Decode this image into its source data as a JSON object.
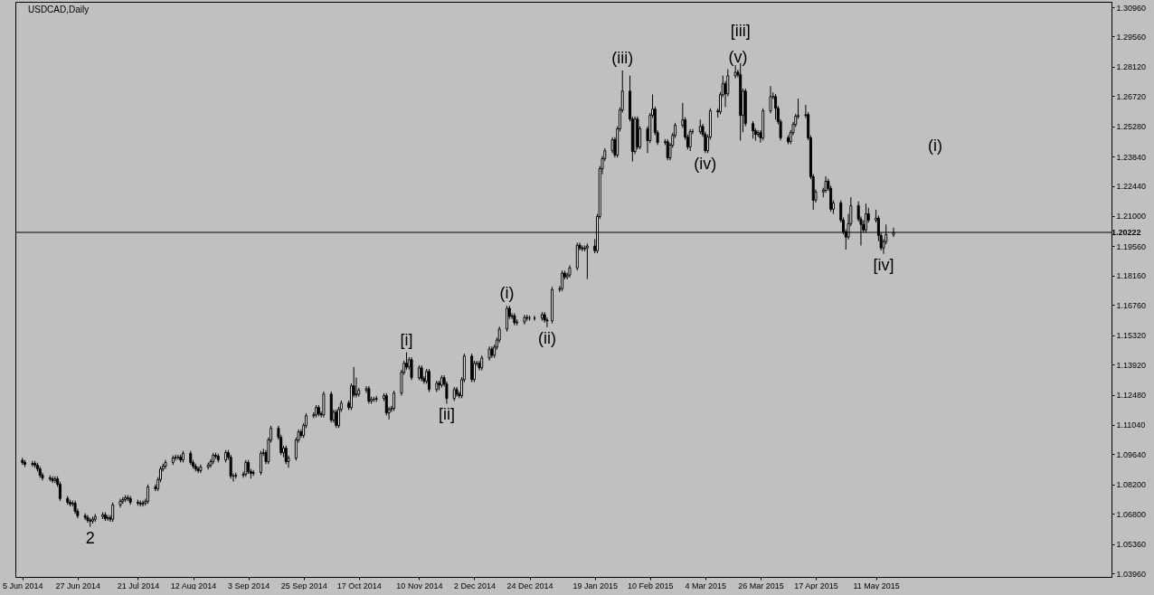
{
  "chart_data": {
    "type": "candlestick",
    "title": "USDCAD,Daily",
    "color": "#000000",
    "xlim": [
      "2014-06-04",
      "2015-08-11"
    ],
    "xticks": [
      {
        "value": "2014-06-05",
        "label": "5 Jun 2014"
      },
      {
        "value": "2014-06-27",
        "label": "27 Jun 2014"
      },
      {
        "value": "2014-07-21",
        "label": "21 Jul 2014"
      },
      {
        "value": "2014-08-12",
        "label": "12 Aug 2014"
      },
      {
        "value": "2014-09-03",
        "label": "3 Sep 2014"
      },
      {
        "value": "2014-09-25",
        "label": "25 Sep 2014"
      },
      {
        "value": "2014-10-17",
        "label": "17 Oct 2014"
      },
      {
        "value": "2014-11-10",
        "label": "10 Nov 2014"
      },
      {
        "value": "2014-12-02",
        "label": "2 Dec 2014"
      },
      {
        "value": "2014-12-24",
        "label": "24 Dec 2014"
      },
      {
        "value": "2015-01-19",
        "label": "19 Jan 2015"
      },
      {
        "value": "2015-02-10",
        "label": "10 Feb 2015"
      },
      {
        "value": "2015-03-04",
        "label": "4 Mar 2015"
      },
      {
        "value": "2015-03-26",
        "label": "26 Mar 2015"
      },
      {
        "value": "2015-04-17",
        "label": "17 Apr 2015"
      },
      {
        "value": "2015-05-11",
        "label": "11 May 2015"
      }
    ],
    "ylim": [
      1.0379,
      1.3122
    ],
    "yticks": [
      {
        "value": 1.3096,
        "label": "1.30960"
      },
      {
        "value": 1.2956,
        "label": "1.29560"
      },
      {
        "value": 1.2812,
        "label": "1.28120"
      },
      {
        "value": 1.2672,
        "label": "1.26720"
      },
      {
        "value": 1.2528,
        "label": "1.25280"
      },
      {
        "value": 1.2384,
        "label": "1.23840"
      },
      {
        "value": 1.2244,
        "label": "1.22440"
      },
      {
        "value": 1.21,
        "label": "1.21000"
      },
      {
        "value": 1.1956,
        "label": "1.19560"
      },
      {
        "value": 1.1816,
        "label": "1.18160"
      },
      {
        "value": 1.1676,
        "label": "1.16760"
      },
      {
        "value": 1.1532,
        "label": "1.15320"
      },
      {
        "value": 1.1392,
        "label": "1.13920"
      },
      {
        "value": 1.1248,
        "label": "1.12480"
      },
      {
        "value": 1.1104,
        "label": "1.11040"
      },
      {
        "value": 1.0964,
        "label": "1.09640"
      },
      {
        "value": 1.082,
        "label": "1.08200"
      },
      {
        "value": 1.068,
        "label": "1.06800"
      },
      {
        "value": 1.0536,
        "label": "1.05360"
      },
      {
        "value": 1.0396,
        "label": "1.03960"
      }
    ],
    "ref_lines": [
      {
        "axis": "y",
        "value": 1.20222,
        "label": "1.20222",
        "color": "#000000"
      }
    ],
    "annotations": [
      {
        "text": "2",
        "x": "2014-07-02",
        "y": 1.0618
      },
      {
        "text": "[i]",
        "x": "2014-11-05",
        "y": 1.145
      },
      {
        "text": "[ii]",
        "x": "2014-11-21",
        "y": 1.1205
      },
      {
        "text": "(i)",
        "x": "2014-12-15",
        "y": 1.1672
      },
      {
        "text": "(ii)",
        "x": "2014-12-31",
        "y": 1.157
      },
      {
        "text": "(iii)",
        "x": "2015-01-30",
        "y": 1.2795
      },
      {
        "text": "(iv)",
        "x": "2015-03-04",
        "y": 1.24
      },
      {
        "text": "(v)",
        "x": "2015-03-17",
        "y": 1.2798
      },
      {
        "text": "[iii]",
        "x": "2015-03-18",
        "y": 1.283
      },
      {
        "text": "[iv]",
        "x": "2015-05-14",
        "y": 1.192
      },
      "(i)"
    ],
    "x": [
      "2014-06-05",
      "2014-06-06",
      "2014-06-09",
      "2014-06-10",
      "2014-06-11",
      "2014-06-12",
      "2014-06-13",
      "2014-06-16",
      "2014-06-17",
      "2014-06-18",
      "2014-06-19",
      "2014-06-20",
      "2014-06-23",
      "2014-06-24",
      "2014-06-25",
      "2014-06-26",
      "2014-06-27",
      "2014-06-30",
      "2014-07-01",
      "2014-07-02",
      "2014-07-03",
      "2014-07-04",
      "2014-07-07",
      "2014-07-08",
      "2014-07-09",
      "2014-07-10",
      "2014-07-11",
      "2014-07-14",
      "2014-07-15",
      "2014-07-16",
      "2014-07-17",
      "2014-07-18",
      "2014-07-21",
      "2014-07-22",
      "2014-07-23",
      "2014-07-24",
      "2014-07-25",
      "2014-07-28",
      "2014-07-29",
      "2014-07-30",
      "2014-07-31",
      "2014-08-01",
      "2014-08-04",
      "2014-08-05",
      "2014-08-06",
      "2014-08-07",
      "2014-08-08",
      "2014-08-11",
      "2014-08-12",
      "2014-08-13",
      "2014-08-14",
      "2014-08-15",
      "2014-08-18",
      "2014-08-19",
      "2014-08-20",
      "2014-08-21",
      "2014-08-22",
      "2014-08-25",
      "2014-08-26",
      "2014-08-27",
      "2014-08-28",
      "2014-08-29",
      "2014-09-01",
      "2014-09-02",
      "2014-09-03",
      "2014-09-04",
      "2014-09-05",
      "2014-09-08",
      "2014-09-09",
      "2014-09-10",
      "2014-09-11",
      "2014-09-12",
      "2014-09-15",
      "2014-09-16",
      "2014-09-17",
      "2014-09-18",
      "2014-09-19",
      "2014-09-22",
      "2014-09-23",
      "2014-09-24",
      "2014-09-25",
      "2014-09-26",
      "2014-09-29",
      "2014-09-30",
      "2014-10-01",
      "2014-10-02",
      "2014-10-03",
      "2014-10-06",
      "2014-10-07",
      "2014-10-08",
      "2014-10-09",
      "2014-10-10",
      "2014-10-13",
      "2014-10-14",
      "2014-10-15",
      "2014-10-16",
      "2014-10-17",
      "2014-10-20",
      "2014-10-21",
      "2014-10-22",
      "2014-10-23",
      "2014-10-24",
      "2014-10-27",
      "2014-10-28",
      "2014-10-29",
      "2014-10-30",
      "2014-10-31",
      "2014-11-03",
      "2014-11-04",
      "2014-11-05",
      "2014-11-06",
      "2014-11-07",
      "2014-11-10",
      "2014-11-11",
      "2014-11-12",
      "2014-11-13",
      "2014-11-14",
      "2014-11-17",
      "2014-11-18",
      "2014-11-19",
      "2014-11-20",
      "2014-11-21",
      "2014-11-24",
      "2014-11-25",
      "2014-11-26",
      "2014-11-27",
      "2014-11-28",
      "2014-12-01",
      "2014-12-02",
      "2014-12-03",
      "2014-12-04",
      "2014-12-05",
      "2014-12-08",
      "2014-12-09",
      "2014-12-10",
      "2014-12-11",
      "2014-12-12",
      "2014-12-15",
      "2014-12-16",
      "2014-12-17",
      "2014-12-18",
      "2014-12-19",
      "2014-12-22",
      "2014-12-23",
      "2014-12-24",
      "2014-12-26",
      "2014-12-29",
      "2014-12-30",
      "2014-12-31",
      "2015-01-02",
      "2015-01-05",
      "2015-01-06",
      "2015-01-07",
      "2015-01-08",
      "2015-01-09",
      "2015-01-12",
      "2015-01-13",
      "2015-01-14",
      "2015-01-15",
      "2015-01-16",
      "2015-01-19",
      "2015-01-20",
      "2015-01-21",
      "2015-01-22",
      "2015-01-23",
      "2015-01-26",
      "2015-01-27",
      "2015-01-28",
      "2015-01-29",
      "2015-01-30",
      "2015-02-02",
      "2015-02-03",
      "2015-02-04",
      "2015-02-05",
      "2015-02-06",
      "2015-02-09",
      "2015-02-10",
      "2015-02-11",
      "2015-02-12",
      "2015-02-13",
      "2015-02-16",
      "2015-02-17",
      "2015-02-18",
      "2015-02-19",
      "2015-02-20",
      "2015-02-23",
      "2015-02-24",
      "2015-02-25",
      "2015-02-26",
      "2015-02-27",
      "2015-03-02",
      "2015-03-03",
      "2015-03-04",
      "2015-03-05",
      "2015-03-06",
      "2015-03-09",
      "2015-03-10",
      "2015-03-11",
      "2015-03-12",
      "2015-03-13",
      "2015-03-16",
      "2015-03-17",
      "2015-03-18",
      "2015-03-19",
      "2015-03-20",
      "2015-03-23",
      "2015-03-24",
      "2015-03-25",
      "2015-03-26",
      "2015-03-27",
      "2015-03-30",
      "2015-03-31",
      "2015-04-01",
      "2015-04-02",
      "2015-04-03",
      "2015-04-06",
      "2015-04-07",
      "2015-04-08",
      "2015-04-09",
      "2015-04-10",
      "2015-04-13",
      "2015-04-14",
      "2015-04-15",
      "2015-04-16",
      "2015-04-17",
      "2015-04-20",
      "2015-04-21",
      "2015-04-22",
      "2015-04-23",
      "2015-04-24",
      "2015-04-27",
      "2015-04-28",
      "2015-04-29",
      "2015-04-30",
      "2015-05-01",
      "2015-05-04",
      "2015-05-05",
      "2015-05-06",
      "2015-05-07",
      "2015-05-08",
      "2015-05-11",
      "2015-05-12",
      "2015-05-13",
      "2015-05-14",
      "2015-05-15",
      "2015-05-18"
    ],
    "ohlc": [
      [
        1.0935,
        1.0947,
        1.0913,
        1.0925
      ],
      [
        1.0925,
        1.0937,
        1.0904,
        1.0916
      ],
      [
        1.0916,
        1.0932,
        1.0904,
        1.092
      ],
      [
        1.092,
        1.0932,
        1.09,
        1.0912
      ],
      [
        1.0912,
        1.0924,
        1.0882,
        1.0894
      ],
      [
        1.0894,
        1.0906,
        1.0852,
        1.0864
      ],
      [
        1.0864,
        1.0876,
        1.0839,
        1.0851
      ],
      [
        1.0851,
        1.0863,
        1.0835,
        1.0847
      ],
      [
        1.0847,
        1.0859,
        1.0827,
        1.0839
      ],
      [
        1.0839,
        1.0859,
        1.0827,
        1.0847
      ],
      [
        1.0847,
        1.0859,
        1.0809,
        1.0821
      ],
      [
        1.0821,
        1.0833,
        1.0741,
        1.0753
      ],
      [
        1.0753,
        1.0765,
        1.0723,
        1.0735
      ],
      [
        1.0735,
        1.0747,
        1.0715,
        1.0727
      ],
      [
        1.0727,
        1.0743,
        1.0715,
        1.0731
      ],
      [
        1.0731,
        1.0743,
        1.068,
        1.0692
      ],
      [
        1.0692,
        1.0704,
        1.0659,
        1.0671
      ],
      [
        1.0671,
        1.0683,
        1.065,
        1.0662
      ],
      [
        1.0662,
        1.0674,
        1.0637,
        1.0649
      ],
      [
        1.0649,
        1.0661,
        1.0618,
        1.0645
      ],
      [
        1.0645,
        1.0666,
        1.0633,
        1.0654
      ],
      [
        1.0654,
        1.0679,
        1.0642,
        1.0667
      ],
      [
        1.0667,
        1.0687,
        1.0655,
        1.0675
      ],
      [
        1.0675,
        1.0687,
        1.0646,
        1.0658
      ],
      [
        1.0658,
        1.0674,
        1.0646,
        1.0662
      ],
      [
        1.0662,
        1.0674,
        1.0642,
        1.0654
      ],
      [
        1.0654,
        1.0734,
        1.0642,
        1.0722
      ],
      [
        1.0722,
        1.0752,
        1.071,
        1.074
      ],
      [
        1.074,
        1.076,
        1.0728,
        1.0748
      ],
      [
        1.0748,
        1.0769,
        1.0736,
        1.0757
      ],
      [
        1.0757,
        1.0769,
        1.0741,
        1.0753
      ],
      [
        1.0753,
        1.0765,
        1.0723,
        1.0735
      ],
      [
        1.0735,
        1.0747,
        1.0719,
        1.0731
      ],
      [
        1.0731,
        1.0743,
        1.0715,
        1.0727
      ],
      [
        1.0727,
        1.0743,
        1.0715,
        1.0731
      ],
      [
        1.0731,
        1.0752,
        1.0719,
        1.074
      ],
      [
        1.074,
        1.082,
        1.0728,
        1.0808
      ],
      [
        1.0808,
        1.082,
        1.0788,
        1.08
      ],
      [
        1.08,
        1.0855,
        1.0788,
        1.0843
      ],
      [
        1.0843,
        1.0906,
        1.0831,
        1.0894
      ],
      [
        1.0894,
        1.0919,
        1.0882,
        1.0907
      ],
      [
        1.0907,
        1.0937,
        1.0895,
        1.0925
      ],
      [
        1.0925,
        1.0958,
        1.0913,
        1.0946
      ],
      [
        1.0946,
        1.0962,
        1.0934,
        1.095
      ],
      [
        1.095,
        1.0962,
        1.0938,
        1.095
      ],
      [
        1.095,
        1.0962,
        1.0925,
        1.0937
      ],
      [
        1.0937,
        1.098,
        1.0925,
        1.0968
      ],
      [
        1.0968,
        1.098,
        1.0913,
        1.0925
      ],
      [
        1.0925,
        1.0937,
        1.0895,
        1.0907
      ],
      [
        1.0907,
        1.0919,
        1.0882,
        1.0894
      ],
      [
        1.0894,
        1.0906,
        1.0874,
        1.0886
      ],
      [
        1.0886,
        1.0915,
        1.0874,
        1.0903
      ],
      [
        1.0903,
        1.0924,
        1.0891,
        1.0912
      ],
      [
        1.0912,
        1.0941,
        1.09,
        1.0929
      ],
      [
        1.0929,
        1.0971,
        1.0917,
        1.0959
      ],
      [
        1.0959,
        1.0971,
        1.0943,
        1.0955
      ],
      [
        1.0955,
        1.0967,
        1.0925,
        1.0937
      ],
      [
        1.0937,
        1.0984,
        1.0925,
        1.0972
      ],
      [
        1.0972,
        1.0984,
        1.0938,
        1.095
      ],
      [
        1.095,
        1.0962,
        1.0848,
        1.086
      ],
      [
        1.086,
        1.0872,
        1.0834,
        1.086
      ],
      [
        1.086,
        1.0876,
        1.0848,
        1.0864
      ],
      [
        1.0864,
        1.0881,
        1.0852,
        1.0869
      ],
      [
        1.0869,
        1.0937,
        1.0857,
        1.0925
      ],
      [
        1.0925,
        1.0937,
        1.087,
        1.0882
      ],
      [
        1.0882,
        1.0894,
        1.0848,
        1.0873
      ],
      [
        1.0873,
        1.0889,
        1.0861,
        1.0877
      ],
      [
        1.0877,
        1.098,
        1.0865,
        1.0968
      ],
      [
        1.0968,
        1.099,
        1.0956,
        1.0972
      ],
      [
        1.0972,
        1.0984,
        1.0917,
        1.0929
      ],
      [
        1.0929,
        1.1044,
        1.0917,
        1.1032
      ],
      [
        1.1032,
        1.11,
        1.102,
        1.1088
      ],
      [
        1.1088,
        1.11,
        1.1033,
        1.1045
      ],
      [
        1.1045,
        1.1057,
        1.096,
        1.0972
      ],
      [
        1.0972,
        1.1005,
        1.095,
        1.0993
      ],
      [
        1.0993,
        1.1005,
        1.0917,
        1.0929
      ],
      [
        1.0929,
        1.0958,
        1.09,
        1.0946
      ],
      [
        1.0946,
        1.1044,
        1.0934,
        1.1032
      ],
      [
        1.1032,
        1.1083,
        1.102,
        1.1071
      ],
      [
        1.1071,
        1.1083,
        1.1042,
        1.1054
      ],
      [
        1.1054,
        1.1113,
        1.1042,
        1.1101
      ],
      [
        1.1101,
        1.116,
        1.1089,
        1.1148
      ],
      [
        1.1148,
        1.1164,
        1.1136,
        1.1152
      ],
      [
        1.1152,
        1.1199,
        1.114,
        1.1187
      ],
      [
        1.1187,
        1.1199,
        1.1145,
        1.1157
      ],
      [
        1.1157,
        1.1169,
        1.114,
        1.1152
      ],
      [
        1.1152,
        1.1263,
        1.114,
        1.1251
      ],
      [
        1.1251,
        1.1263,
        1.1115,
        1.1127
      ],
      [
        1.1127,
        1.1177,
        1.1115,
        1.1165
      ],
      [
        1.1165,
        1.1177,
        1.1089,
        1.1101
      ],
      [
        1.1101,
        1.119,
        1.1089,
        1.1178
      ],
      [
        1.1178,
        1.122,
        1.1166,
        1.1208
      ],
      [
        1.1208,
        1.122,
        1.1175,
        1.1187
      ],
      [
        1.1187,
        1.1302,
        1.1175,
        1.129
      ],
      [
        1.129,
        1.138,
        1.1235,
        1.1247
      ],
      [
        1.1247,
        1.133,
        1.1235,
        1.1251
      ],
      [
        1.1251,
        1.1281,
        1.1239,
        1.1269
      ],
      [
        1.1269,
        1.1289,
        1.1257,
        1.1277
      ],
      [
        1.1277,
        1.1289,
        1.1205,
        1.1217
      ],
      [
        1.1217,
        1.1238,
        1.1205,
        1.1226
      ],
      [
        1.1226,
        1.1238,
        1.1214,
        1.1226
      ],
      [
        1.1226,
        1.1242,
        1.1214,
        1.123
      ],
      [
        1.123,
        1.1255,
        1.1218,
        1.1243
      ],
      [
        1.1243,
        1.1255,
        1.1149,
        1.1161
      ],
      [
        1.1161,
        1.119,
        1.113,
        1.1178
      ],
      [
        1.1178,
        1.1195,
        1.1166,
        1.1183
      ],
      [
        1.1183,
        1.1268,
        1.1171,
        1.1256
      ],
      [
        1.1256,
        1.1367,
        1.1244,
        1.1355
      ],
      [
        1.1355,
        1.141,
        1.1343,
        1.1398
      ],
      [
        1.1398,
        1.145,
        1.1368,
        1.138
      ],
      [
        1.138,
        1.1427,
        1.1368,
        1.1415
      ],
      [
        1.1415,
        1.1427,
        1.1317,
        1.1329
      ],
      [
        1.1329,
        1.1388,
        1.1317,
        1.1376
      ],
      [
        1.1376,
        1.1388,
        1.1312,
        1.1324
      ],
      [
        1.1324,
        1.1336,
        1.13,
        1.1312
      ],
      [
        1.1312,
        1.1371,
        1.13,
        1.1359
      ],
      [
        1.1359,
        1.1371,
        1.1261,
        1.1273
      ],
      [
        1.1273,
        1.1315,
        1.1261,
        1.1303
      ],
      [
        1.1303,
        1.1315,
        1.127,
        1.1294
      ],
      [
        1.1294,
        1.1341,
        1.1282,
        1.1329
      ],
      [
        1.1329,
        1.1341,
        1.1287,
        1.1299
      ],
      [
        1.1299,
        1.1311,
        1.1205,
        1.123
      ],
      [
        1.123,
        1.1285,
        1.1218,
        1.1273
      ],
      [
        1.1273,
        1.1285,
        1.1239,
        1.1251
      ],
      [
        1.1251,
        1.1263,
        1.1231,
        1.1243
      ],
      [
        1.1243,
        1.1332,
        1.1231,
        1.132
      ],
      [
        1.132,
        1.1444,
        1.1308,
        1.1432
      ],
      [
        1.1432,
        1.1444,
        1.1308,
        1.132
      ],
      [
        1.132,
        1.141,
        1.1308,
        1.1398
      ],
      [
        1.1398,
        1.141,
        1.1386,
        1.1398
      ],
      [
        1.1398,
        1.141,
        1.1364,
        1.1376
      ],
      [
        1.1376,
        1.1435,
        1.1364,
        1.1423
      ],
      [
        1.1423,
        1.1478,
        1.1411,
        1.1466
      ],
      [
        1.1466,
        1.1478,
        1.1424,
        1.1436
      ],
      [
        1.1436,
        1.1487,
        1.1424,
        1.1475
      ],
      [
        1.1475,
        1.1521,
        1.1463,
        1.1509
      ],
      [
        1.1509,
        1.1573,
        1.1497,
        1.1561
      ],
      [
        1.1561,
        1.1672,
        1.1549,
        1.166
      ],
      [
        1.166,
        1.1672,
        1.1609,
        1.1621
      ],
      [
        1.1621,
        1.1637,
        1.1609,
        1.1625
      ],
      [
        1.1625,
        1.1637,
        1.1579,
        1.1591
      ],
      [
        1.1591,
        1.1607,
        1.1579,
        1.1595
      ],
      [
        1.1595,
        1.1629,
        1.1583,
        1.1617
      ],
      [
        1.1617,
        1.1629,
        1.1601,
        1.1613
      ],
      [
        1.1613,
        1.1625,
        1.1601,
        1.1613
      ],
      [
        1.1613,
        1.1625,
        1.1601,
        1.1613
      ],
      [
        1.1613,
        1.1642,
        1.1601,
        1.163
      ],
      [
        1.163,
        1.1642,
        1.1592,
        1.1604
      ],
      [
        1.1604,
        1.1616,
        1.157,
        1.16
      ],
      [
        1.16,
        1.1762,
        1.1588,
        1.175
      ],
      [
        1.175,
        1.1766,
        1.1738,
        1.1754
      ],
      [
        1.1754,
        1.184,
        1.1742,
        1.1828
      ],
      [
        1.1828,
        1.184,
        1.1798,
        1.181
      ],
      [
        1.181,
        1.1831,
        1.1798,
        1.1819
      ],
      [
        1.1819,
        1.1865,
        1.1807,
        1.1853
      ],
      [
        1.1853,
        1.1973,
        1.1841,
        1.1961
      ],
      [
        1.1961,
        1.1973,
        1.1936,
        1.1948
      ],
      [
        1.1948,
        1.196,
        1.1932,
        1.1944
      ],
      [
        1.1944,
        1.196,
        1.1932,
        1.1948
      ],
      [
        1.1948,
        1.1969,
        1.18,
        1.1957
      ],
      [
        1.1957,
        1.199,
        1.1923,
        1.1935
      ],
      [
        1.1935,
        1.211,
        1.1923,
        1.2098
      ],
      [
        1.2098,
        1.2338,
        1.2086,
        1.2326
      ],
      [
        1.2326,
        1.2386,
        1.23,
        1.2374
      ],
      [
        1.2374,
        1.2424,
        1.2362,
        1.2412
      ],
      [
        1.2412,
        1.2476,
        1.24,
        1.2464
      ],
      [
        1.2464,
        1.2476,
        1.2379,
        1.2391
      ],
      [
        1.2391,
        1.2528,
        1.2379,
        1.2516
      ],
      [
        1.2516,
        1.2618,
        1.2504,
        1.2606
      ],
      [
        1.2606,
        1.2795,
        1.2594,
        1.2696
      ],
      [
        1.2696,
        1.277,
        1.2551,
        1.2563
      ],
      [
        1.2563,
        1.2575,
        1.236,
        1.2408
      ],
      [
        1.2408,
        1.2575,
        1.2396,
        1.2563
      ],
      [
        1.2563,
        1.2575,
        1.2418,
        1.243
      ],
      [
        1.243,
        1.2528,
        1.2418,
        1.2516
      ],
      [
        1.2516,
        1.2528,
        1.24,
        1.246
      ],
      [
        1.246,
        1.2592,
        1.2448,
        1.258
      ],
      [
        1.258,
        1.268,
        1.2568,
        1.261
      ],
      [
        1.261,
        1.2622,
        1.2486,
        1.2498
      ],
      [
        1.2498,
        1.251,
        1.2439,
        1.2451
      ],
      [
        1.2451,
        1.2467,
        1.2439,
        1.2455
      ],
      [
        1.2455,
        1.2467,
        1.2366,
        1.2378
      ],
      [
        1.2378,
        1.245,
        1.2366,
        1.2438
      ],
      [
        1.2438,
        1.2497,
        1.2426,
        1.2485
      ],
      [
        1.2485,
        1.2545,
        1.2473,
        1.2533
      ],
      [
        1.2533,
        1.264,
        1.2521,
        1.2559
      ],
      [
        1.2559,
        1.2571,
        1.2465,
        1.2477
      ],
      [
        1.2477,
        1.2489,
        1.2418,
        1.243
      ],
      [
        1.243,
        1.2515,
        1.241,
        1.2503
      ],
      [
        1.2503,
        1.2515,
        1.2491,
        1.2503
      ],
      [
        1.2503,
        1.256,
        1.2491,
        1.2528
      ],
      [
        1.2528,
        1.254,
        1.2478,
        1.249
      ],
      [
        1.249,
        1.2502,
        1.24,
        1.2412
      ],
      [
        1.2412,
        1.2489,
        1.24,
        1.2477
      ],
      [
        1.2477,
        1.2614,
        1.2465,
        1.2602
      ],
      [
        1.2602,
        1.2614,
        1.257,
        1.2597
      ],
      [
        1.2597,
        1.2691,
        1.2585,
        1.2679
      ],
      [
        1.2679,
        1.277,
        1.2667,
        1.2731
      ],
      [
        1.2731,
        1.2743,
        1.262,
        1.2683
      ],
      [
        1.2683,
        1.28,
        1.2671,
        1.2769
      ],
      [
        1.2769,
        1.282,
        1.2757,
        1.2786
      ],
      [
        1.2786,
        1.2798,
        1.2762,
        1.2774
      ],
      [
        1.2774,
        1.283,
        1.246,
        1.258
      ],
      [
        1.258,
        1.2708,
        1.25,
        1.2696
      ],
      [
        1.2696,
        1.2708,
        1.2529,
        1.2541
      ],
      [
        1.2541,
        1.2553,
        1.247,
        1.2507
      ],
      [
        1.2507,
        1.2519,
        1.246,
        1.249
      ],
      [
        1.249,
        1.251,
        1.2478,
        1.2498
      ],
      [
        1.2498,
        1.251,
        1.245,
        1.2473
      ],
      [
        1.2473,
        1.2614,
        1.2461,
        1.2602
      ],
      [
        1.2602,
        1.272,
        1.259,
        1.267
      ],
      [
        1.267,
        1.269,
        1.2658,
        1.267
      ],
      [
        1.267,
        1.2682,
        1.256,
        1.2614
      ],
      [
        1.2614,
        1.2626,
        1.2538,
        1.255
      ],
      [
        1.255,
        1.2562,
        1.2461,
        1.2473
      ],
      [
        1.2473,
        1.2485,
        1.2443,
        1.2455
      ],
      [
        1.2455,
        1.251,
        1.2443,
        1.2498
      ],
      [
        1.2498,
        1.2549,
        1.2486,
        1.2537
      ],
      [
        1.2537,
        1.2588,
        1.2525,
        1.2576
      ],
      [
        1.2576,
        1.266,
        1.2564,
        1.258
      ],
      [
        1.258,
        1.263,
        1.2568,
        1.2584
      ],
      [
        1.2584,
        1.2596,
        1.2461,
        1.2473
      ],
      [
        1.2473,
        1.2485,
        1.2276,
        1.2288
      ],
      [
        1.2288,
        1.23,
        1.213,
        1.2176
      ],
      [
        1.2176,
        1.2227,
        1.2164,
        1.2215
      ],
      [
        1.2215,
        1.2235,
        1.219,
        1.2223
      ],
      [
        1.2223,
        1.229,
        1.2211,
        1.2266
      ],
      [
        1.2266,
        1.2278,
        1.222,
        1.2232
      ],
      [
        1.2232,
        1.2244,
        1.2121,
        1.2133
      ],
      [
        1.2133,
        1.2175,
        1.211,
        1.2163
      ],
      [
        1.2163,
        1.2175,
        1.2069,
        1.2081
      ],
      [
        1.2081,
        1.2093,
        1.2013,
        1.2025
      ],
      [
        1.2025,
        1.2037,
        1.194,
        1.2
      ],
      [
        1.2,
        1.211,
        1.1988,
        1.2064
      ],
      [
        1.2064,
        1.219,
        1.2052,
        1.215
      ],
      [
        1.215,
        1.217,
        1.2074,
        1.2086
      ],
      [
        1.2086,
        1.2098,
        1.196,
        1.206
      ],
      [
        1.206,
        1.208,
        1.2022,
        1.2034
      ],
      [
        1.2034,
        1.216,
        1.2022,
        1.2111
      ],
      [
        1.2111,
        1.214,
        1.2069,
        1.2081
      ],
      [
        1.2081,
        1.213,
        1.2069,
        1.209
      ],
      [
        1.209,
        1.2102,
        1.198,
        1.2008
      ],
      [
        1.2008,
        1.202,
        1.1936,
        1.1948
      ],
      [
        1.1948,
        1.199,
        1.192,
        1.1978
      ],
      [
        1.1978,
        1.206,
        1.1966,
        1.2012
      ],
      [
        1.2012,
        1.2045,
        1.2,
        1.2022
      ]
    ]
  }
}
